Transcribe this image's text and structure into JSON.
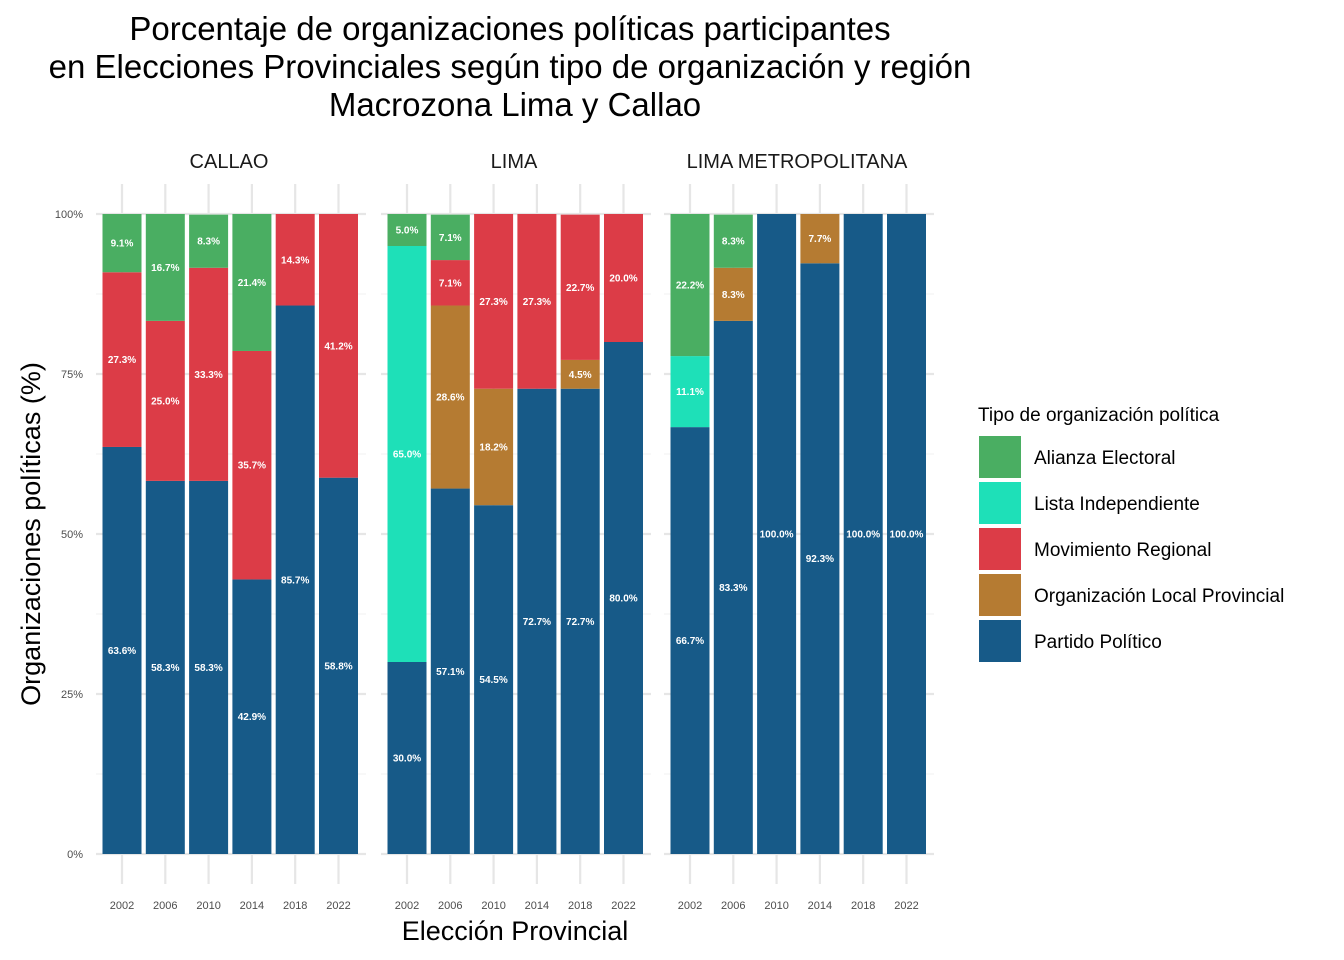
{
  "chart_data": {
    "type": "bar",
    "stacked": true,
    "title": [
      "Porcentaje de organizaciones políticas participantes",
      "en Elecciones Provinciales según tipo de organización y región",
      "Macrozona Lima y Callao"
    ],
    "xlabel": "Elección Provincial",
    "ylabel": "Organizaciones políticas (%)",
    "ylim": [
      0,
      100
    ],
    "yticks": [
      "0%",
      "25%",
      "50%",
      "75%",
      "100%"
    ],
    "ytick_values": [
      0,
      25,
      50,
      75,
      100
    ],
    "categories": [
      "2002",
      "2006",
      "2010",
      "2014",
      "2018",
      "2022"
    ],
    "legend": {
      "title": "Tipo de organización política",
      "position": "right",
      "entries": [
        {
          "name": "Alianza Electoral",
          "color": "#4aae62"
        },
        {
          "name": "Lista Independiente",
          "color": "#1ee0b8"
        },
        {
          "name": "Movimiento Regional",
          "color": "#dc3c47"
        },
        {
          "name": "Organización Local Provincial",
          "color": "#b57b32"
        },
        {
          "name": "Partido Político",
          "color": "#175a88"
        }
      ]
    },
    "stack_order": [
      "Partido Político",
      "Lista Independiente",
      "Organización Local Provincial",
      "Movimiento Regional",
      "Alianza Electoral"
    ],
    "facets": [
      {
        "region": "CALLAO",
        "series": [
          {
            "name": "Partido Político",
            "values": [
              63.6,
              58.3,
              58.3,
              42.9,
              85.7,
              58.8
            ]
          },
          {
            "name": "Lista Independiente",
            "values": [
              0,
              0,
              0,
              0,
              0,
              0
            ]
          },
          {
            "name": "Organización Local Provincial",
            "values": [
              0,
              0,
              0,
              0,
              0,
              0
            ]
          },
          {
            "name": "Movimiento Regional",
            "values": [
              27.3,
              25.0,
              33.3,
              35.7,
              14.3,
              41.2
            ]
          },
          {
            "name": "Alianza Electoral",
            "values": [
              9.1,
              16.7,
              8.3,
              21.4,
              0,
              0
            ]
          }
        ]
      },
      {
        "region": "LIMA",
        "series": [
          {
            "name": "Partido Político",
            "values": [
              30.0,
              57.1,
              54.5,
              72.7,
              72.7,
              80.0
            ]
          },
          {
            "name": "Lista Independiente",
            "values": [
              65.0,
              0,
              0,
              0,
              0,
              0
            ]
          },
          {
            "name": "Organización Local Provincial",
            "values": [
              0,
              28.6,
              18.2,
              0,
              4.5,
              0
            ]
          },
          {
            "name": "Movimiento Regional",
            "values": [
              0,
              7.1,
              27.3,
              27.3,
              22.7,
              20.0
            ]
          },
          {
            "name": "Alianza Electoral",
            "values": [
              5.0,
              7.1,
              0,
              0,
              0,
              0
            ]
          }
        ]
      },
      {
        "region": "LIMA METROPOLITANA",
        "series": [
          {
            "name": "Partido Político",
            "values": [
              66.7,
              83.3,
              100.0,
              92.3,
              100.0,
              100.0
            ]
          },
          {
            "name": "Lista Independiente",
            "values": [
              11.1,
              0,
              0,
              0,
              0,
              0
            ]
          },
          {
            "name": "Organización Local Provincial",
            "values": [
              0,
              8.3,
              0,
              7.7,
              0,
              0
            ]
          },
          {
            "name": "Movimiento Regional",
            "values": [
              0,
              0,
              0,
              0,
              0,
              0
            ]
          },
          {
            "name": "Alianza Electoral",
            "values": [
              22.2,
              8.3,
              0,
              0,
              0,
              0
            ]
          }
        ]
      }
    ],
    "grid": true
  }
}
